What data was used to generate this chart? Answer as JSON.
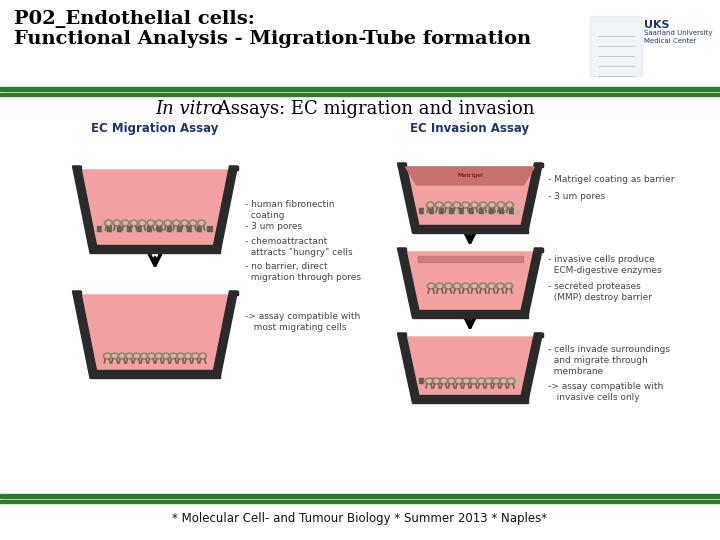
{
  "title_line1": "P02_Endothelial cells:",
  "title_line2": "Functional Analysis - Migration-Tube formation",
  "subtitle_italic": "In vitro",
  "subtitle_normal": " Assays: EC migration and invasion",
  "footer": "* Molecular Cell- and Tumour Biology * Summer 2013 * Naples*",
  "migration_title": "EC Migration Assay",
  "invasion_title": "EC Invasion Assay",
  "bg_color": "#ffffff",
  "title_color": "#000000",
  "green_line": "#2d7a2d",
  "blue_color": "#1a3570",
  "pink_fill": "#f2a0a0",
  "wall_color": "#2a2a2a",
  "cell_dark": "#6b5a4e",
  "cell_light": "#c8b0a0",
  "matrigel_color": "#c87878",
  "membrane_dark": "#8b7050",
  "membrane_light": "#d4b896",
  "note_color": "#444444",
  "footer_color": "#111111"
}
